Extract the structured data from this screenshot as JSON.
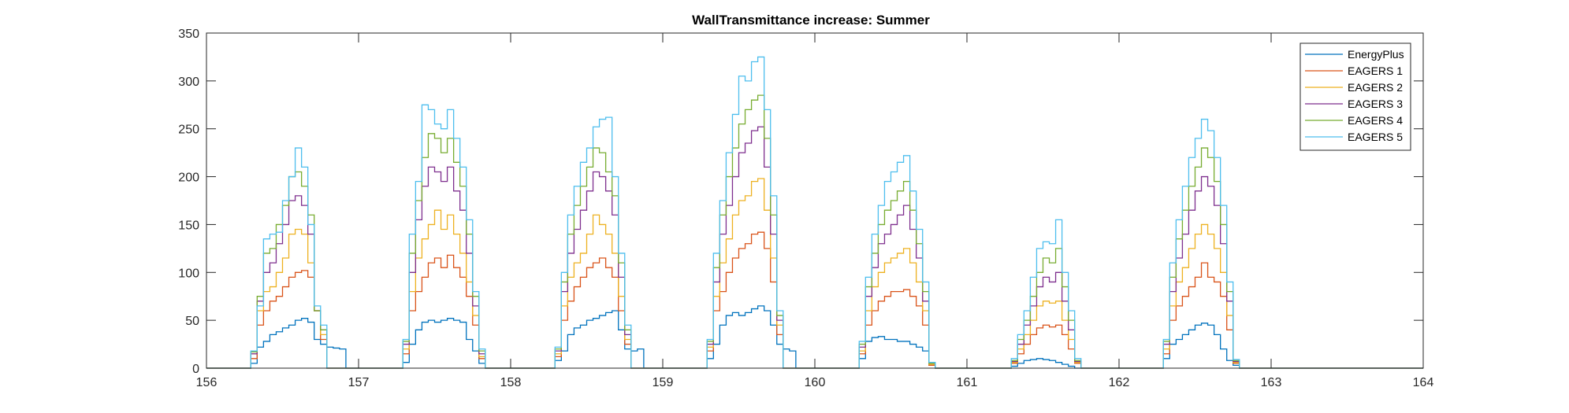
{
  "chart_data": {
    "type": "line",
    "title": "WallTransmittance increase: Summer",
    "xlabel": "",
    "ylabel": "",
    "xlim": [
      156,
      164
    ],
    "ylim": [
      0,
      350
    ],
    "xticks": [
      156,
      157,
      158,
      159,
      160,
      161,
      162,
      163,
      164
    ],
    "yticks": [
      0,
      50,
      100,
      150,
      200,
      250,
      300,
      350
    ],
    "grid": false,
    "legend_position": "top-right",
    "step": 0.04166667,
    "day_start_offset": 0.29167,
    "days": [
      156,
      157,
      158,
      159,
      160,
      161,
      162
    ],
    "series": [
      {
        "name": "EnergyPlus",
        "color": "#0072BD",
        "profiles": [
          [
            5,
            22,
            28,
            35,
            38,
            42,
            45,
            50,
            52,
            48,
            30,
            25,
            22,
            21,
            20
          ],
          [
            6,
            25,
            40,
            48,
            50,
            48,
            50,
            52,
            50,
            48,
            30,
            18,
            5
          ],
          [
            8,
            18,
            35,
            42,
            45,
            50,
            52,
            55,
            58,
            60,
            40,
            20,
            18,
            20
          ],
          [
            10,
            25,
            45,
            55,
            58,
            55,
            58,
            62,
            65,
            60,
            45,
            25,
            20,
            18
          ],
          [
            10,
            28,
            32,
            33,
            30,
            30,
            28,
            28,
            25,
            22,
            18,
            3
          ],
          [
            2,
            5,
            8,
            9,
            10,
            9,
            8,
            6,
            4,
            2
          ],
          [
            10,
            25,
            30,
            35,
            40,
            45,
            47,
            45,
            35,
            20,
            8,
            3
          ]
        ]
      },
      {
        "name": "EAGERS 1",
        "color": "#D95319",
        "profiles": [
          [
            10,
            45,
            60,
            70,
            75,
            85,
            95,
            100,
            102,
            95,
            60,
            30
          ],
          [
            15,
            60,
            80,
            95,
            110,
            115,
            105,
            118,
            105,
            95,
            75,
            45,
            10
          ],
          [
            12,
            50,
            70,
            85,
            95,
            105,
            110,
            115,
            105,
            95,
            60,
            25
          ],
          [
            18,
            60,
            80,
            100,
            115,
            125,
            130,
            140,
            142,
            125,
            90,
            35
          ],
          [
            15,
            45,
            60,
            70,
            75,
            80,
            80,
            82,
            75,
            65,
            45,
            3
          ],
          [
            5,
            15,
            25,
            35,
            42,
            45,
            43,
            45,
            35,
            20,
            5
          ],
          [
            15,
            50,
            65,
            75,
            85,
            95,
            110,
            95,
            90,
            75,
            40,
            5
          ]
        ]
      },
      {
        "name": "EAGERS 2",
        "color": "#EDB120",
        "profiles": [
          [
            15,
            60,
            80,
            85,
            100,
            115,
            140,
            145,
            140,
            110,
            60,
            35
          ],
          [
            20,
            80,
            115,
            135,
            150,
            165,
            145,
            160,
            140,
            120,
            90,
            55,
            12
          ],
          [
            15,
            65,
            95,
            110,
            120,
            140,
            160,
            150,
            140,
            120,
            75,
            30
          ],
          [
            22,
            75,
            110,
            135,
            160,
            175,
            180,
            195,
            198,
            165,
            115,
            45
          ],
          [
            18,
            60,
            85,
            100,
            110,
            115,
            120,
            125,
            110,
            90,
            60,
            4
          ],
          [
            6,
            20,
            35,
            50,
            65,
            70,
            68,
            70,
            50,
            30,
            6
          ],
          [
            20,
            65,
            90,
            105,
            125,
            140,
            150,
            140,
            125,
            100,
            55,
            6
          ]
        ]
      },
      {
        "name": "EAGERS 3",
        "color": "#7E2F8E",
        "profiles": [
          [
            15,
            70,
            100,
            110,
            130,
            150,
            175,
            180,
            170,
            140,
            60,
            40
          ],
          [
            25,
            100,
            155,
            190,
            210,
            205,
            195,
            210,
            185,
            165,
            120,
            65,
            15
          ],
          [
            18,
            80,
            120,
            145,
            165,
            185,
            205,
            200,
            185,
            160,
            95,
            35
          ],
          [
            25,
            90,
            140,
            170,
            200,
            225,
            235,
            248,
            252,
            210,
            140,
            50
          ],
          [
            22,
            75,
            105,
            130,
            140,
            150,
            160,
            170,
            145,
            115,
            70,
            5
          ],
          [
            7,
            25,
            45,
            65,
            85,
            95,
            90,
            100,
            70,
            40,
            7
          ],
          [
            25,
            80,
            115,
            140,
            165,
            185,
            200,
            190,
            170,
            130,
            70,
            7
          ]
        ]
      },
      {
        "name": "EAGERS 4",
        "color": "#77AC30",
        "profiles": [
          [
            17,
            75,
            120,
            125,
            150,
            170,
            200,
            205,
            190,
            160,
            60,
            40
          ],
          [
            28,
            120,
            175,
            220,
            245,
            240,
            225,
            240,
            215,
            190,
            140,
            75,
            18
          ],
          [
            20,
            90,
            140,
            170,
            190,
            210,
            230,
            225,
            205,
            180,
            110,
            40
          ],
          [
            28,
            105,
            160,
            200,
            230,
            255,
            270,
            280,
            285,
            240,
            160,
            55
          ],
          [
            25,
            85,
            120,
            150,
            165,
            175,
            185,
            195,
            165,
            130,
            80,
            5
          ],
          [
            8,
            30,
            50,
            75,
            100,
            115,
            110,
            125,
            85,
            50,
            8
          ],
          [
            28,
            95,
            135,
            165,
            190,
            210,
            230,
            220,
            195,
            150,
            80,
            8
          ]
        ]
      },
      {
        "name": "EAGERS 5",
        "color": "#4DBEEE",
        "profiles": [
          [
            18,
            65,
            135,
            140,
            142,
            175,
            200,
            230,
            210,
            150,
            65,
            45
          ],
          [
            30,
            140,
            195,
            275,
            270,
            255,
            250,
            270,
            240,
            210,
            155,
            80,
            20
          ],
          [
            22,
            100,
            160,
            190,
            215,
            230,
            252,
            260,
            262,
            200,
            120,
            45
          ],
          [
            30,
            120,
            175,
            225,
            265,
            305,
            300,
            320,
            325,
            270,
            180,
            60
          ],
          [
            28,
            95,
            140,
            170,
            195,
            205,
            215,
            222,
            185,
            145,
            90,
            6
          ],
          [
            10,
            35,
            60,
            95,
            125,
            132,
            130,
            155,
            100,
            60,
            10
          ],
          [
            30,
            110,
            155,
            190,
            220,
            240,
            260,
            248,
            220,
            170,
            90,
            9
          ]
        ]
      }
    ]
  }
}
